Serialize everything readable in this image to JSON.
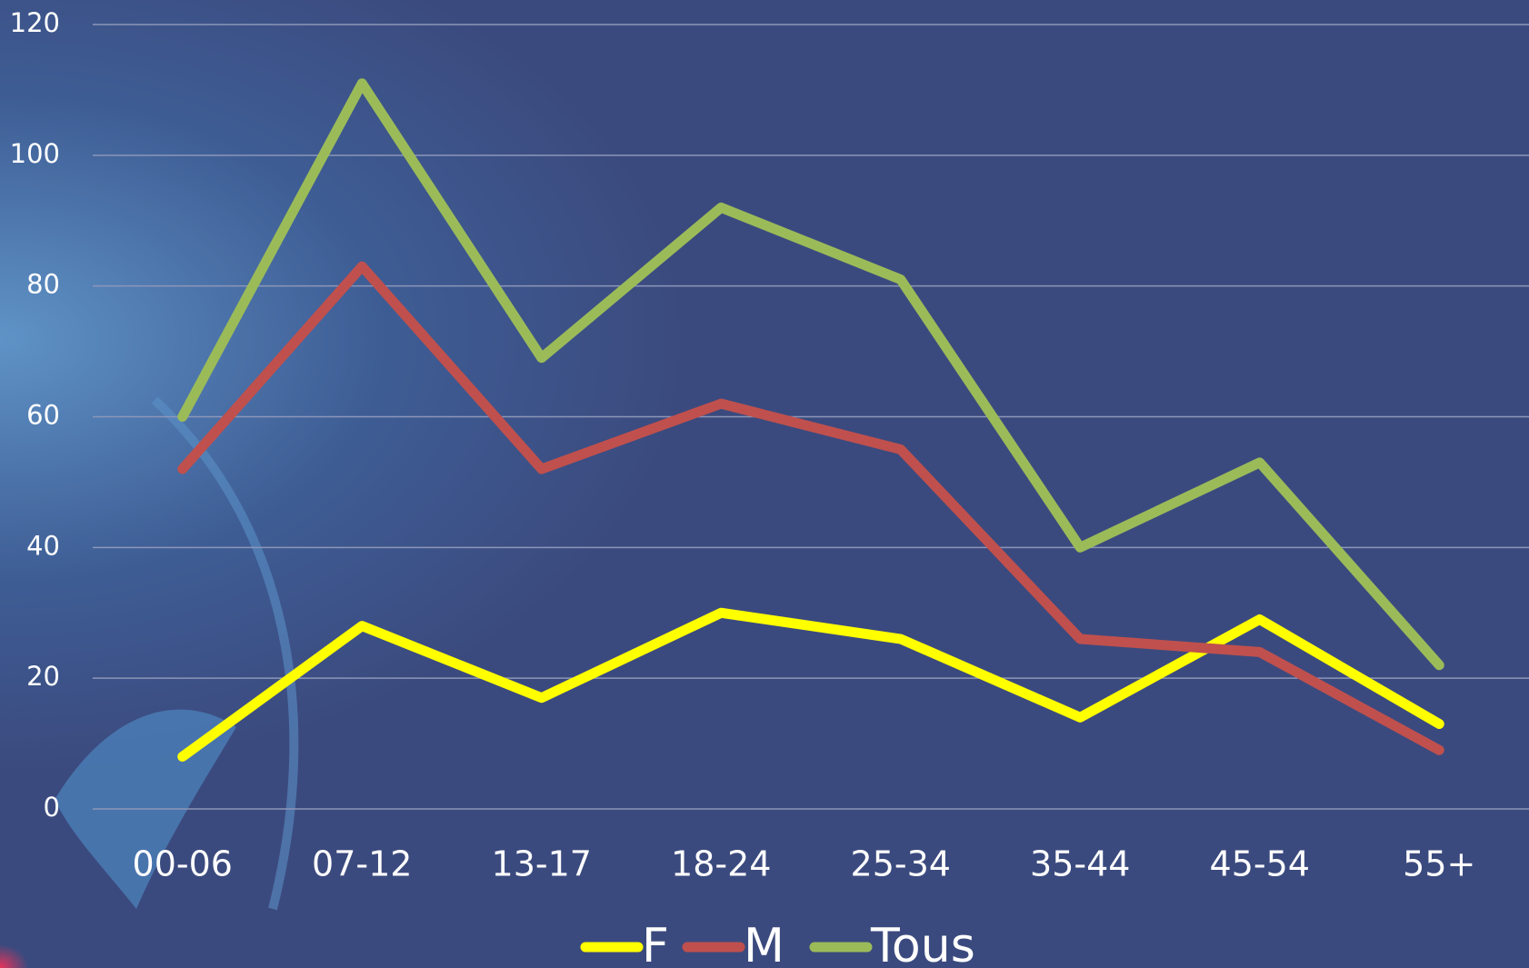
{
  "chart_data": {
    "type": "line",
    "categories": [
      "00-06",
      "07-12",
      "13-17",
      "18-24",
      "25-34",
      "35-44",
      "45-54",
      "55+"
    ],
    "series": [
      {
        "name": "F",
        "color": "#ffff00",
        "values": [
          8,
          28,
          17,
          30,
          26,
          14,
          29,
          13
        ]
      },
      {
        "name": "M",
        "color": "#c0504d",
        "values": [
          52,
          83,
          52,
          62,
          55,
          26,
          24,
          9
        ]
      },
      {
        "name": "Tous",
        "color": "#9bbb59",
        "values": [
          60,
          111,
          69,
          92,
          81,
          40,
          53,
          22
        ]
      }
    ],
    "ylim": [
      0,
      120
    ],
    "yticks": [
      0,
      20,
      40,
      60,
      80,
      100,
      120
    ],
    "grid": true,
    "legend": "bottom"
  }
}
